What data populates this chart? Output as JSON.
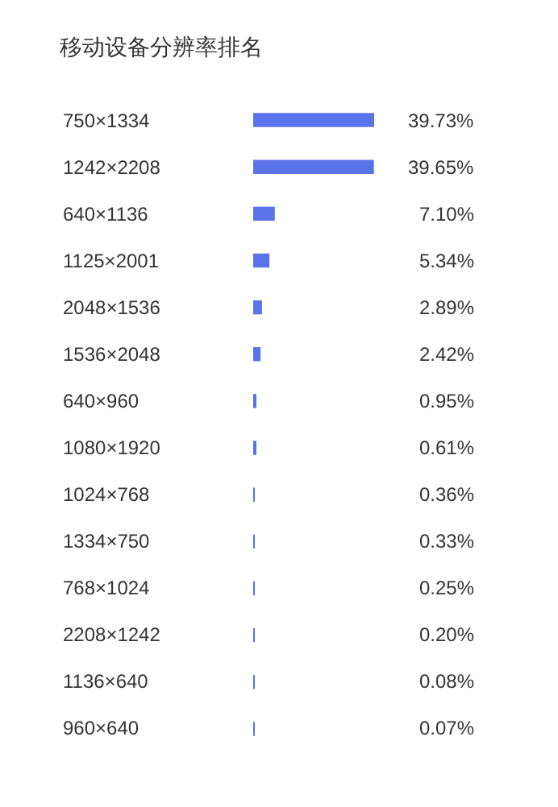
{
  "chart_data": {
    "type": "bar",
    "orientation": "horizontal",
    "title": "移动设备分辨率排名",
    "categories": [
      "750×1334",
      "1242×2208",
      "640×1136",
      "1125×2001",
      "2048×1536",
      "1536×2048",
      "640×960",
      "1080×1920",
      "1024×768",
      "1334×750",
      "768×1024",
      "2208×1242",
      "1136×640",
      "960×640"
    ],
    "values": [
      39.73,
      39.65,
      7.1,
      5.34,
      2.89,
      2.42,
      0.95,
      0.61,
      0.36,
      0.33,
      0.25,
      0.2,
      0.08,
      0.07
    ],
    "value_labels": [
      "39.73%",
      "39.65%",
      "7.10%",
      "5.34%",
      "2.89%",
      "2.42%",
      "0.95%",
      "0.61%",
      "0.36%",
      "0.33%",
      "0.25%",
      "0.20%",
      "0.08%",
      "0.07%"
    ],
    "color": "#5b73e8"
  }
}
